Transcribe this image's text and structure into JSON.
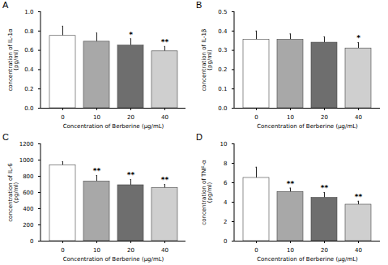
{
  "chart_data": [
    {
      "type": "bar",
      "title": "A",
      "x_label": "Concentration of Berberine (μg/mL)",
      "y_label": "concentration of IL-1α\n(pg/ml)",
      "categories": [
        "0",
        "10",
        "20",
        "40"
      ],
      "values": [
        0.75,
        0.69,
        0.65,
        0.59
      ],
      "errors": [
        0.1,
        0.09,
        0.07,
        0.05
      ],
      "annotations": [
        null,
        null,
        "*",
        "**"
      ],
      "colors": [
        "#ffffff",
        "#a8a8a8",
        "#6e6e6e",
        "#cfcfcf"
      ],
      "ylim": [
        0,
        1.0
      ],
      "yticks": [
        {
          "value": 0,
          "label": "0.0"
        },
        0.2,
        0.4,
        0.6,
        0.8,
        {
          "value": 1.0,
          "label": "1.0"
        }
      ]
    },
    {
      "type": "bar",
      "title": "B",
      "x_label": "Concentration of Berberine (μg/mL)",
      "y_label": "concentration of IL-1β\n(pg/ml)",
      "categories": [
        "0",
        "10",
        "20",
        "40"
      ],
      "values": [
        0.355,
        0.355,
        0.34,
        0.31
      ],
      "errors": [
        0.045,
        0.03,
        0.03,
        0.03
      ],
      "annotations": [
        null,
        null,
        null,
        "*"
      ],
      "colors": [
        "#ffffff",
        "#a8a8a8",
        "#6e6e6e",
        "#cfcfcf"
      ],
      "ylim": [
        0,
        0.5
      ],
      "yticks": [
        {
          "value": 0,
          "label": "0.0"
        },
        0.1,
        0.2,
        0.3,
        0.4,
        0.5
      ]
    },
    {
      "type": "bar",
      "title": "C",
      "x_label": "Concentration of Berberine (μg/mL)",
      "y_label": "concentration of IL-6\n(pg/ml)",
      "categories": [
        "0",
        "10",
        "20",
        "40"
      ],
      "values": [
        935,
        735,
        690,
        655
      ],
      "errors": [
        45,
        75,
        70,
        45
      ],
      "annotations": [
        null,
        "**",
        "**",
        "**"
      ],
      "colors": [
        "#ffffff",
        "#a8a8a8",
        "#6e6e6e",
        "#cfcfcf"
      ],
      "ylim": [
        0,
        1200
      ],
      "yticks": [
        0,
        200,
        400,
        600,
        800,
        1000,
        1200
      ]
    },
    {
      "type": "bar",
      "title": "D",
      "x_label": "Concentration of Berberine (μg/mL)",
      "y_label": "concentration of TNF-α\n(pg/ml)",
      "categories": [
        "0",
        "10",
        "20",
        "40"
      ],
      "values": [
        6.5,
        5.05,
        4.45,
        3.75
      ],
      "errors": [
        1.1,
        0.4,
        0.55,
        0.35
      ],
      "annotations": [
        null,
        "**",
        "**",
        "**"
      ],
      "colors": [
        "#ffffff",
        "#a8a8a8",
        "#6e6e6e",
        "#cfcfcf"
      ],
      "ylim": [
        0,
        10
      ],
      "yticks": [
        0,
        2,
        4,
        6,
        8,
        10
      ]
    }
  ]
}
